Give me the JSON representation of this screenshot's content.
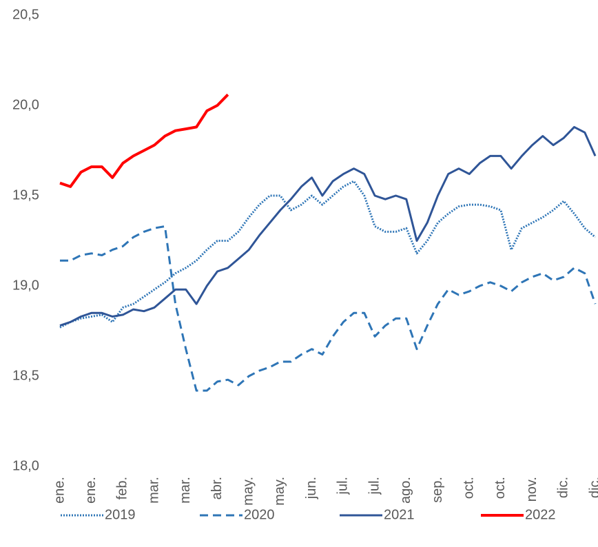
{
  "chart_data": {
    "type": "line",
    "categories": [
      "ene.",
      null,
      null,
      "ene.",
      null,
      null,
      "feb.",
      null,
      null,
      "mar.",
      null,
      null,
      "mar.",
      null,
      null,
      "abr.",
      null,
      null,
      "may.",
      null,
      null,
      "may.",
      null,
      null,
      "jun.",
      null,
      null,
      "jul.",
      null,
      null,
      "jul.",
      null,
      null,
      "ago.",
      null,
      null,
      "sep.",
      null,
      null,
      "oct.",
      null,
      null,
      "oct.",
      null,
      null,
      "nov.",
      null,
      null,
      "dic.",
      null,
      null,
      "dic."
    ],
    "series": [
      {
        "name": "2019",
        "color": "#2e75b6",
        "dash": "dotted",
        "values": [
          18.77,
          18.8,
          18.82,
          18.83,
          18.84,
          18.8,
          18.88,
          18.9,
          18.94,
          18.98,
          19.02,
          19.07,
          19.1,
          19.14,
          19.2,
          19.25,
          19.25,
          19.3,
          19.38,
          19.45,
          19.5,
          19.5,
          19.42,
          19.45,
          19.5,
          19.45,
          19.5,
          19.55,
          19.58,
          19.5,
          19.33,
          19.3,
          19.3,
          19.32,
          19.18,
          19.25,
          19.35,
          19.4,
          19.44,
          19.45,
          19.45,
          19.44,
          19.42,
          19.2,
          19.32,
          19.35,
          19.38,
          19.42,
          19.47,
          19.4,
          19.32,
          19.27
        ]
      },
      {
        "name": "2020",
        "color": "#2e75b6",
        "dash": "dashed",
        "values": [
          19.14,
          19.14,
          19.17,
          19.18,
          19.17,
          19.2,
          19.22,
          19.27,
          19.3,
          19.32,
          19.33,
          18.9,
          18.65,
          18.42,
          18.42,
          18.47,
          18.48,
          18.45,
          18.5,
          18.53,
          18.55,
          18.58,
          18.58,
          18.62,
          18.65,
          18.62,
          18.72,
          18.8,
          18.85,
          18.85,
          18.72,
          18.78,
          18.82,
          18.82,
          18.65,
          18.78,
          18.9,
          18.98,
          18.95,
          18.97,
          19.0,
          19.02,
          19.0,
          18.97,
          19.02,
          19.05,
          19.07,
          19.03,
          19.05,
          19.1,
          19.07,
          18.9
        ]
      },
      {
        "name": "2021",
        "color": "#2f5597",
        "dash": "solid",
        "values": [
          18.78,
          18.8,
          18.83,
          18.85,
          18.85,
          18.83,
          18.84,
          18.87,
          18.86,
          18.88,
          18.93,
          18.98,
          18.98,
          18.9,
          19.0,
          19.08,
          19.1,
          19.15,
          19.2,
          19.28,
          19.35,
          19.42,
          19.48,
          19.55,
          19.6,
          19.5,
          19.58,
          19.62,
          19.65,
          19.62,
          19.5,
          19.48,
          19.5,
          19.48,
          19.25,
          19.35,
          19.5,
          19.62,
          19.65,
          19.62,
          19.68,
          19.72,
          19.72,
          19.65,
          19.72,
          19.78,
          19.83,
          19.78,
          19.82,
          19.88,
          19.85,
          19.72
        ]
      },
      {
        "name": "2022",
        "color": "#ff0000",
        "dash": "solid",
        "values": [
          19.57,
          19.55,
          19.63,
          19.66,
          19.66,
          19.6,
          19.68,
          19.72,
          19.75,
          19.78,
          19.83,
          19.86,
          19.87,
          19.88,
          19.97,
          20.0,
          20.06,
          null,
          null,
          null,
          null,
          null,
          null,
          null,
          null,
          null,
          null,
          null,
          null,
          null,
          null,
          null,
          null,
          null,
          null,
          null,
          null,
          null,
          null,
          null,
          null,
          null,
          null,
          null,
          null,
          null,
          null,
          null,
          null,
          null,
          null,
          null
        ]
      }
    ],
    "ylim": [
      18,
      20.5
    ],
    "yticks": [
      {
        "value": 18,
        "label": "18,0"
      },
      {
        "value": 18.5,
        "label": "18,5"
      },
      {
        "value": 19,
        "label": "19,0"
      },
      {
        "value": 19.5,
        "label": "19,5"
      },
      {
        "value": 20,
        "label": "20,0"
      },
      {
        "value": 20.5,
        "label": "20,5"
      }
    ],
    "grid": false
  }
}
